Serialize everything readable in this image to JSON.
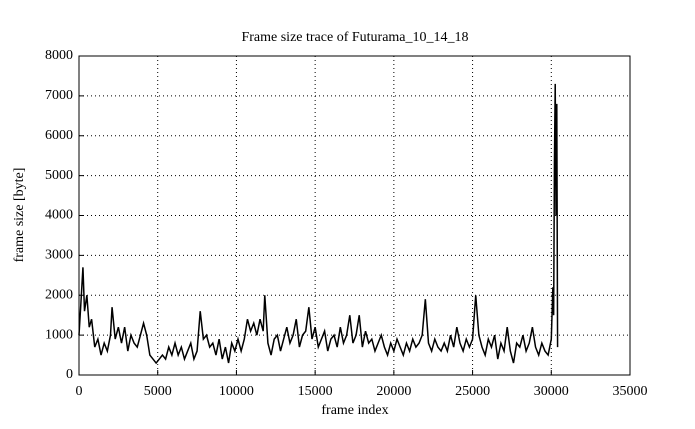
{
  "chart_data": {
    "type": "line",
    "title": "Frame size trace of Futurama_10_14_18",
    "x_label": "frame index",
    "y_label": "frame size [byte]",
    "x": [
      0,
      150,
      250,
      350,
      500,
      650,
      800,
      1000,
      1200,
      1400,
      1600,
      1800,
      2000,
      2100,
      2300,
      2500,
      2700,
      2900,
      3100,
      3300,
      3500,
      3700,
      3900,
      4100,
      4300,
      4500,
      4700,
      4900,
      5100,
      5300,
      5500,
      5700,
      5900,
      6100,
      6300,
      6500,
      6700,
      6900,
      7100,
      7300,
      7500,
      7700,
      7900,
      8100,
      8300,
      8500,
      8700,
      8900,
      9100,
      9300,
      9500,
      9700,
      9900,
      10100,
      10300,
      10500,
      10700,
      10900,
      11100,
      11300,
      11500,
      11700,
      11800,
      12000,
      12200,
      12400,
      12600,
      12800,
      13000,
      13200,
      13400,
      13600,
      13800,
      14000,
      14200,
      14400,
      14600,
      14800,
      15000,
      15200,
      15400,
      15600,
      15800,
      16000,
      16200,
      16400,
      16600,
      16800,
      17000,
      17200,
      17400,
      17600,
      17800,
      18000,
      18200,
      18400,
      18600,
      18800,
      19000,
      19200,
      19400,
      19600,
      19800,
      20000,
      20200,
      20400,
      20600,
      20800,
      21000,
      21200,
      21400,
      21600,
      21800,
      22000,
      22200,
      22400,
      22600,
      22800,
      23000,
      23200,
      23400,
      23600,
      23800,
      24000,
      24200,
      24400,
      24600,
      24800,
      25000,
      25200,
      25400,
      25600,
      25800,
      26000,
      26200,
      26400,
      26600,
      26800,
      27000,
      27200,
      27400,
      27600,
      27800,
      28000,
      28200,
      28400,
      28600,
      28800,
      29000,
      29200,
      29400,
      29600,
      29800,
      30000,
      30100,
      30150,
      30200,
      30250,
      30300,
      30350,
      30400
    ],
    "series": [
      {
        "color": "#000000",
        "values": [
          1000,
          2000,
          2700,
          1600,
          2000,
          1200,
          1400,
          700,
          900,
          500,
          800,
          600,
          1000,
          1700,
          900,
          1200,
          800,
          1200,
          600,
          1000,
          800,
          700,
          1000,
          1300,
          1000,
          500,
          400,
          300,
          400,
          500,
          400,
          700,
          500,
          800,
          500,
          700,
          400,
          600,
          800,
          400,
          600,
          1600,
          900,
          1000,
          700,
          800,
          500,
          900,
          400,
          700,
          300,
          800,
          600,
          900,
          600,
          900,
          1400,
          1100,
          1300,
          1000,
          1400,
          1100,
          2000,
          800,
          500,
          900,
          1000,
          600,
          900,
          1200,
          800,
          1000,
          1400,
          700,
          1000,
          1100,
          1700,
          900,
          1200,
          700,
          900,
          1100,
          600,
          900,
          1000,
          700,
          1200,
          800,
          1000,
          1500,
          800,
          1000,
          1500,
          700,
          1100,
          800,
          900,
          600,
          800,
          1000,
          700,
          500,
          800,
          600,
          900,
          700,
          500,
          800,
          600,
          900,
          700,
          800,
          1000,
          1900,
          800,
          600,
          900,
          700,
          600,
          800,
          600,
          1000,
          700,
          1200,
          800,
          600,
          900,
          700,
          900,
          2000,
          1000,
          700,
          500,
          900,
          700,
          1000,
          400,
          800,
          600,
          1200,
          600,
          300,
          800,
          700,
          1000,
          600,
          800,
          1200,
          700,
          500,
          800,
          600,
          500,
          900,
          2200,
          1500,
          5300,
          7300,
          4000,
          6800,
          700
        ]
      }
    ],
    "xlim": [
      0,
      35000
    ],
    "ylim": [
      0,
      8000
    ],
    "xticks": [
      0,
      5000,
      10000,
      15000,
      20000,
      25000,
      30000,
      35000
    ],
    "yticks": [
      0,
      1000,
      2000,
      3000,
      4000,
      5000,
      6000,
      7000,
      8000
    ],
    "grid": true
  }
}
